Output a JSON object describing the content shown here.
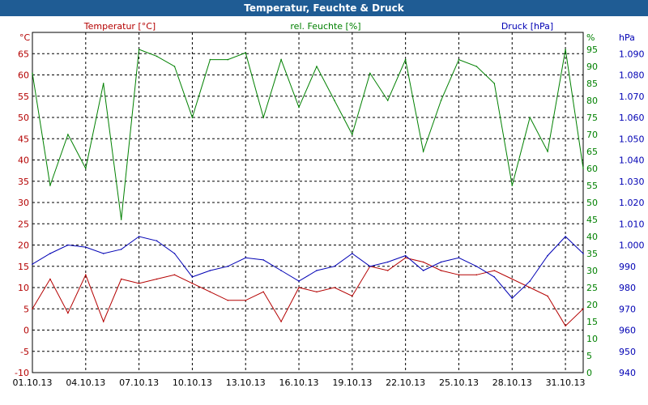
{
  "title": "Temperatur, Feuchte & Druck",
  "colors": {
    "titlebar": "#1f5c94",
    "temperature": "#b40000",
    "humidity": "#008000",
    "pressure": "#0000b4",
    "grid": "#000000"
  },
  "chart_data": {
    "type": "line",
    "title": "Temperatur, Feuchte & Druck",
    "grid": true,
    "x_ticks": [
      "01.10.13",
      "04.10.13",
      "07.10.13",
      "10.10.13",
      "13.10.13",
      "16.10.13",
      "19.10.13",
      "22.10.13",
      "25.10.13",
      "28.10.13",
      "31.10.13"
    ],
    "x_range": [
      "01.10.13",
      "01.11.13"
    ],
    "axes": {
      "left": {
        "label": "Temperatur [°C]",
        "unit": "°C",
        "range": [
          -10,
          70
        ],
        "ticks": [
          -10,
          -5,
          0,
          5,
          10,
          15,
          20,
          25,
          30,
          35,
          40,
          45,
          50,
          55,
          60,
          65
        ]
      },
      "right1": {
        "label": "rel. Feuchte [%]",
        "unit": "%",
        "range": [
          0,
          100
        ],
        "ticks": [
          0,
          5,
          10,
          15,
          20,
          25,
          30,
          35,
          40,
          45,
          50,
          55,
          60,
          65,
          70,
          75,
          80,
          85,
          90,
          95
        ]
      },
      "right2": {
        "label": "Druck [hPa]",
        "unit": "hPa",
        "range": [
          940,
          1100
        ],
        "ticks": [
          "940",
          "950",
          "960",
          "970",
          "980",
          "990",
          "1.000",
          "1.010",
          "1.020",
          "1.030",
          "1.040",
          "1.050",
          "1.060",
          "1.070",
          "1.080",
          "1.090"
        ]
      }
    },
    "series": [
      {
        "name": "Temperatur [°C]",
        "axis": "left",
        "color": "#b40000",
        "x": [
          "01.10.13",
          "02.10.13",
          "03.10.13",
          "04.10.13",
          "05.10.13",
          "06.10.13",
          "07.10.13",
          "08.10.13",
          "09.10.13",
          "10.10.13",
          "11.10.13",
          "12.10.13",
          "13.10.13",
          "14.10.13",
          "15.10.13",
          "16.10.13",
          "17.10.13",
          "18.10.13",
          "19.10.13",
          "20.10.13",
          "21.10.13",
          "22.10.13",
          "23.10.13",
          "24.10.13",
          "25.10.13",
          "26.10.13",
          "27.10.13",
          "28.10.13",
          "29.10.13",
          "30.10.13",
          "31.10.13",
          "01.11.13"
        ],
        "values": [
          5,
          12,
          4,
          13,
          2,
          12,
          11,
          12,
          13,
          11,
          9,
          7,
          7,
          9,
          2,
          10,
          9,
          10,
          8,
          15,
          14,
          17,
          16,
          14,
          13,
          13,
          14,
          12,
          10,
          8,
          1,
          5
        ]
      },
      {
        "name": "rel. Feuchte [%]",
        "axis": "right1",
        "color": "#008000",
        "x": [
          "01.10.13",
          "02.10.13",
          "03.10.13",
          "04.10.13",
          "05.10.13",
          "06.10.13",
          "07.10.13",
          "08.10.13",
          "09.10.13",
          "10.10.13",
          "11.10.13",
          "12.10.13",
          "13.10.13",
          "14.10.13",
          "15.10.13",
          "16.10.13",
          "17.10.13",
          "18.10.13",
          "19.10.13",
          "20.10.13",
          "21.10.13",
          "22.10.13",
          "23.10.13",
          "24.10.13",
          "25.10.13",
          "26.10.13",
          "27.10.13",
          "28.10.13",
          "29.10.13",
          "30.10.13",
          "31.10.13",
          "01.11.13"
        ],
        "values": [
          88,
          55,
          70,
          60,
          85,
          45,
          95,
          93,
          90,
          75,
          92,
          92,
          94,
          75,
          92,
          78,
          90,
          80,
          70,
          88,
          80,
          92,
          65,
          80,
          92,
          90,
          85,
          55,
          75,
          65,
          95,
          60
        ]
      },
      {
        "name": "Druck [hPa]",
        "axis": "right2",
        "color": "#0000b4",
        "x": [
          "01.10.13",
          "02.10.13",
          "03.10.13",
          "04.10.13",
          "05.10.13",
          "06.10.13",
          "07.10.13",
          "08.10.13",
          "09.10.13",
          "10.10.13",
          "11.10.13",
          "12.10.13",
          "13.10.13",
          "14.10.13",
          "15.10.13",
          "16.10.13",
          "17.10.13",
          "18.10.13",
          "19.10.13",
          "20.10.13",
          "21.10.13",
          "22.10.13",
          "23.10.13",
          "24.10.13",
          "25.10.13",
          "26.10.13",
          "27.10.13",
          "28.10.13",
          "29.10.13",
          "30.10.13",
          "31.10.13",
          "01.11.13"
        ],
        "values": [
          991,
          996,
          1000,
          999,
          996,
          998,
          1004,
          1002,
          996,
          985,
          988,
          990,
          994,
          993,
          988,
          983,
          988,
          990,
          996,
          990,
          992,
          995,
          988,
          992,
          994,
          990,
          985,
          975,
          983,
          995,
          1004,
          996
        ]
      }
    ]
  }
}
